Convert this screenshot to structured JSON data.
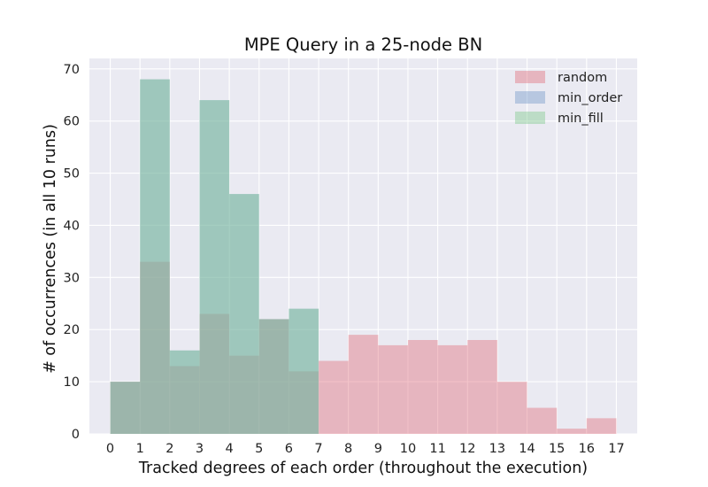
{
  "chart_data": {
    "type": "bar",
    "title": "MPE Query in a 25-node BN",
    "xlabel": "Tracked degrees of each order (throughout the execution)",
    "ylabel": "# of occurrences (in all 10 runs)",
    "x_ticks": [
      "0",
      "1",
      "2",
      "3",
      "4",
      "5",
      "6",
      "7",
      "8",
      "9",
      "10",
      "11",
      "12",
      "13",
      "14",
      "15",
      "16",
      "17"
    ],
    "y_ticks": [
      "0",
      "10",
      "20",
      "30",
      "40",
      "50",
      "60",
      "70"
    ],
    "xlim": [
      -0.7,
      17.7
    ],
    "ylim": [
      0,
      72
    ],
    "bin_edges": [
      0,
      1,
      2,
      3,
      4,
      5,
      6,
      7,
      8,
      9,
      10,
      11,
      12,
      13,
      14,
      15,
      16,
      17
    ],
    "grid": true,
    "legend_position": "top-right",
    "series": [
      {
        "name": "random",
        "color": "#e06c7a",
        "values": [
          10,
          33,
          13,
          23,
          15,
          22,
          12,
          14,
          19,
          17,
          18,
          17,
          18,
          10,
          5,
          1,
          3
        ]
      },
      {
        "name": "min_order",
        "color": "#6f97c9",
        "values": [
          10,
          68,
          16,
          64,
          46,
          22,
          24,
          0,
          0,
          0,
          0,
          0,
          0,
          0,
          0,
          0,
          0
        ]
      },
      {
        "name": "min_fill",
        "color": "#7cc88a",
        "values": [
          10,
          68,
          16,
          64,
          46,
          22,
          24,
          0,
          0,
          0,
          0,
          0,
          0,
          0,
          0,
          0,
          0
        ]
      }
    ]
  }
}
